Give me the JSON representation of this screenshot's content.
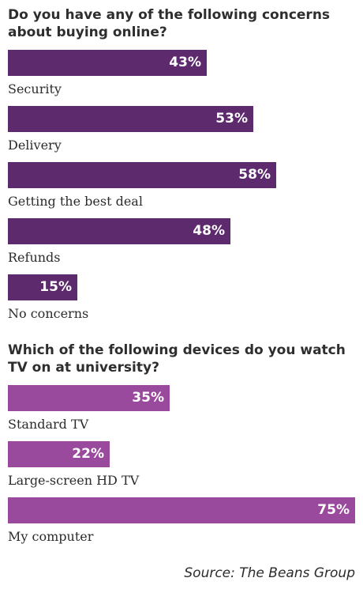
{
  "chart_data": [
    {
      "type": "bar",
      "orientation": "horizontal",
      "title": "Do you have any of the following concerns about buying online?",
      "categories": [
        "Security",
        "Delivery",
        "Getting the best deal",
        "Refunds",
        "No concerns"
      ],
      "values": [
        43,
        53,
        58,
        48,
        15
      ],
      "value_labels": [
        "43%",
        "53%",
        "58%",
        "48%",
        "15%"
      ],
      "unit": "%",
      "xlim": [
        0,
        75
      ],
      "grid": false,
      "bar_color": "#5e2a6e"
    },
    {
      "type": "bar",
      "orientation": "horizontal",
      "title": "Which of the following devices do you watch TV on at university?",
      "categories": [
        "Standard TV",
        "Large-screen HD TV",
        "My computer"
      ],
      "values": [
        35,
        22,
        75
      ],
      "value_labels": [
        "35%",
        "22%",
        "75%"
      ],
      "unit": "%",
      "xlim": [
        0,
        75
      ],
      "grid": false,
      "bar_color": "#9a4a9c"
    }
  ],
  "source": "Source: The Beans Group"
}
